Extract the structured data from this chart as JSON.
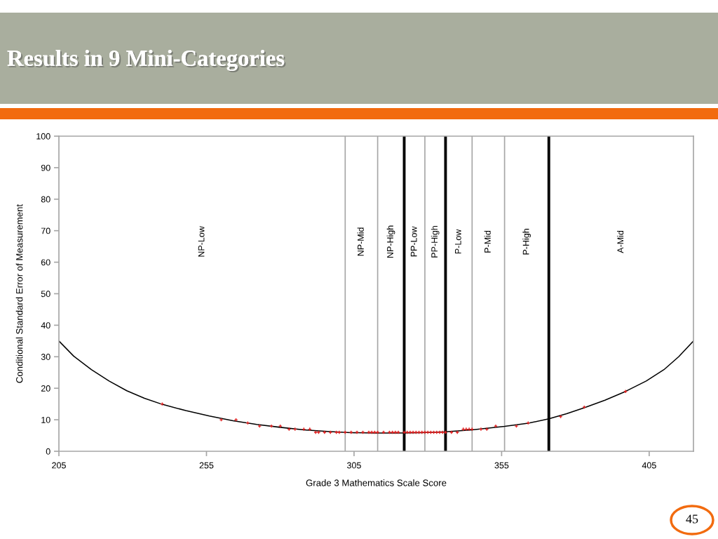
{
  "chart_data": {
    "type": "scatter",
    "title": "Results in 9 Mini-Categories",
    "xlabel": "Grade 3 Mathematics Scale Score",
    "ylabel": "Conditional Standard Error of Measurement",
    "xlim": [
      205,
      420
    ],
    "xticks": [
      205,
      255,
      305,
      355,
      405
    ],
    "ylim": [
      0,
      100
    ],
    "yticks": [
      0,
      10,
      20,
      30,
      40,
      50,
      60,
      70,
      80,
      90,
      100
    ],
    "series": [
      {
        "color": "#e02020",
        "marker": "cross",
        "x": [
          240,
          260,
          265,
          269,
          273,
          277,
          280,
          283,
          285,
          288,
          290,
          292,
          293,
          295,
          297,
          299,
          300,
          302,
          304,
          306,
          308,
          310,
          311,
          312,
          313,
          315,
          317,
          318,
          319,
          320,
          322,
          323,
          324,
          325,
          326,
          327,
          328,
          329,
          330,
          331,
          332,
          333,
          334,
          335,
          336,
          338,
          340,
          342,
          343,
          344,
          345,
          348,
          350,
          353,
          360,
          364,
          375,
          383,
          397
        ],
        "values": [
          15,
          10,
          10,
          9,
          8,
          8,
          8,
          7,
          7,
          7,
          7,
          6,
          6,
          6,
          6,
          6,
          6,
          6,
          6,
          6,
          6,
          6,
          6,
          6,
          6,
          6,
          6,
          6,
          6,
          6,
          6,
          6,
          6,
          6,
          6,
          6,
          6,
          6,
          6,
          6,
          6,
          6,
          6,
          6,
          6,
          6,
          6,
          7,
          7,
          7,
          7,
          7,
          7,
          8,
          8,
          9,
          11,
          14,
          19
        ]
      },
      {
        "type": "line",
        "color": "#000000",
        "line_style": "solid",
        "x": [
          205,
          210,
          216,
          222,
          228,
          234,
          240,
          248,
          256,
          264,
          272,
          280,
          288,
          296,
          304,
          312,
          320,
          328,
          336,
          345,
          356,
          364,
          371,
          377,
          383,
          390,
          397,
          404,
          410,
          415,
          420
        ],
        "values": [
          35,
          30.2,
          25.9,
          22.3,
          19.2,
          16.8,
          14.9,
          12.9,
          11.2,
          9.7,
          8.5,
          7.6,
          6.8,
          6.3,
          5.9,
          5.8,
          5.8,
          5.9,
          6.2,
          6.8,
          7.9,
          8.9,
          10.3,
          11.9,
          13.8,
          16.2,
          19.0,
          22.3,
          25.9,
          30.0,
          35
        ]
      }
    ],
    "ref_lines": [
      {
        "axis": "x",
        "value": 302,
        "color": "#a6a6a6"
      },
      {
        "axis": "x",
        "value": 313,
        "color": "#a6a6a6"
      },
      {
        "axis": "x",
        "value": 322,
        "color": "#000000"
      },
      {
        "axis": "x",
        "value": 329,
        "color": "#a6a6a6"
      },
      {
        "axis": "x",
        "value": 336,
        "color": "#000000"
      },
      {
        "axis": "x",
        "value": 345,
        "color": "#a6a6a6"
      },
      {
        "axis": "x",
        "value": 356,
        "color": "#a6a6a6"
      },
      {
        "axis": "x",
        "value": 371,
        "color": "#000000"
      }
    ],
    "annotations": [
      "NP-Low",
      "NP-Mid",
      "NP-High",
      "PP-Low",
      "PP-High",
      "P-Low",
      "P-Mid",
      "P-High",
      "A-Mid",
      "45"
    ]
  }
}
